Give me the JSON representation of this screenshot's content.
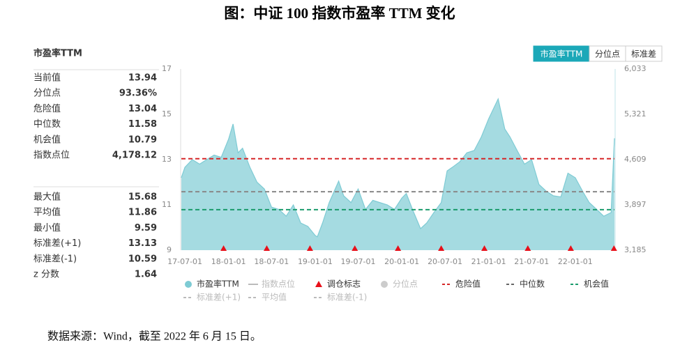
{
  "title": "图：中证 100 指数市盈率 TTM 变化",
  "source": "数据来源：Wind，截至 2022 年 6 月 15 日。",
  "buttons": [
    "市盈率TTM",
    "分位点",
    "标准差"
  ],
  "panel": {
    "title": "市盈率TTM",
    "group1": [
      [
        "当前值",
        "13.94"
      ],
      [
        "分位点",
        "93.36%"
      ],
      [
        "危险值",
        "13.04"
      ],
      [
        "中位数",
        "11.58"
      ],
      [
        "机会值",
        "10.79"
      ],
      [
        "指数点位",
        "4,178.12"
      ]
    ],
    "group2": [
      [
        "最大值",
        "15.68"
      ],
      [
        "平均值",
        "11.86"
      ],
      [
        "最小值",
        "9.59"
      ],
      [
        "标准差(+1)",
        "13.13"
      ],
      [
        "标准差(-1)",
        "10.59"
      ],
      [
        "z 分数",
        "1.64"
      ]
    ]
  },
  "chart_data": {
    "type": "area",
    "x": [
      "17-06-16",
      "17-07-01",
      "17-08-01",
      "17-09-01",
      "17-10-01",
      "17-11-01",
      "17-12-01",
      "18-01-01",
      "18-01-20",
      "18-02-10",
      "18-03-01",
      "18-04-01",
      "18-05-01",
      "18-06-01",
      "18-07-01",
      "18-08-01",
      "18-09-01",
      "18-10-01",
      "18-11-01",
      "18-12-01",
      "19-01-01",
      "19-01-10",
      "19-02-01",
      "19-03-01",
      "19-04-10",
      "19-05-01",
      "19-06-01",
      "19-07-01",
      "19-08-01",
      "19-09-01",
      "19-10-01",
      "19-11-01",
      "19-12-01",
      "20-01-01",
      "20-01-20",
      "20-02-15",
      "20-03-20",
      "20-04-15",
      "20-05-15",
      "20-06-15",
      "20-07-10",
      "20-08-01",
      "20-09-01",
      "20-10-01",
      "20-11-01",
      "20-12-01",
      "21-01-01",
      "21-02-10",
      "21-03-10",
      "21-04-01",
      "21-05-01",
      "21-06-01",
      "21-07-01",
      "21-08-01",
      "21-09-01",
      "21-10-01",
      "21-11-01",
      "21-12-01",
      "22-01-01",
      "22-02-01",
      "22-03-01",
      "22-04-01",
      "22-05-01",
      "22-06-01",
      "22-06-15"
    ],
    "series": [
      {
        "name": "市盈率TTM",
        "color": "#7ecbd4",
        "fill": "#a5dbe1",
        "values": [
          12.2,
          12.66,
          13.0,
          12.8,
          13.0,
          13.2,
          13.1,
          13.9,
          14.57,
          13.3,
          13.5,
          12.66,
          12.0,
          11.7,
          10.9,
          10.8,
          10.5,
          11.0,
          10.2,
          10.05,
          9.65,
          9.59,
          10.2,
          11.1,
          12.05,
          11.4,
          11.1,
          11.7,
          10.8,
          11.2,
          11.1,
          11.0,
          10.8,
          11.3,
          11.5,
          10.8,
          9.95,
          10.2,
          10.66,
          11.1,
          12.5,
          12.66,
          12.9,
          13.3,
          13.4,
          14.0,
          14.8,
          15.68,
          14.35,
          14.0,
          13.4,
          12.8,
          13.0,
          11.9,
          11.6,
          11.4,
          11.35,
          12.4,
          12.2,
          11.6,
          11.1,
          10.8,
          10.5,
          10.66,
          13.94
        ]
      }
    ],
    "ref_lines": [
      {
        "name": "危险值",
        "value": 13.04,
        "color": "#d62728"
      },
      {
        "name": "中位数",
        "value": 11.58,
        "color": "#888888"
      },
      {
        "name": "机会值",
        "value": 10.79,
        "color": "#1a9b6c"
      }
    ],
    "rebalance": {
      "name": "调仓标志",
      "color": "#e8101a",
      "x": [
        "17-12-11",
        "18-06-11",
        "18-12-10",
        "19-06-17",
        "19-12-16",
        "20-06-15",
        "20-12-14",
        "21-06-15",
        "21-12-13",
        "22-06-13"
      ]
    },
    "xlim": [
      "17-06-16",
      "22-06-15"
    ],
    "xticks": [
      "17-07-01",
      "18-01-01",
      "18-07-01",
      "19-01-01",
      "19-07-01",
      "20-01-01",
      "20-07-01",
      "21-01-01",
      "21-07-01",
      "22-01-01"
    ],
    "ylim": [
      9,
      17
    ],
    "yticks": [
      9,
      11,
      13,
      15,
      17
    ],
    "y2lim": [
      3185,
      6033
    ],
    "y2ticks": [
      {
        "value": 3185,
        "label": "3,185"
      },
      {
        "value": 3897,
        "label": "3,897"
      },
      {
        "value": 4609,
        "label": "4,609"
      },
      {
        "value": 5321,
        "label": "5,321"
      },
      {
        "value": 6033,
        "label": "6,033"
      }
    ],
    "legend": [
      {
        "name": "市盈率TTM",
        "symbol": "circle",
        "color": "#7ecbd4",
        "dim": false
      },
      {
        "name": "指数点位",
        "symbol": "line",
        "color": "#bbbbbb",
        "dim": true
      },
      {
        "name": "调仓标志",
        "symbol": "triangle",
        "color": "#e8101a",
        "dim": false
      },
      {
        "name": "分位点",
        "symbol": "circle",
        "color": "#cccccc",
        "dim": true
      },
      {
        "name": "危险值",
        "symbol": "dash",
        "color": "#d62728",
        "dim": false
      },
      {
        "name": "中位数",
        "symbol": "dash",
        "color": "#666666",
        "dim": false
      },
      {
        "name": "机会值",
        "symbol": "dash",
        "color": "#1a9b6c",
        "dim": false
      },
      {
        "name": "标准差(+1)",
        "symbol": "dash",
        "color": "#bbbbbb",
        "dim": true
      },
      {
        "name": "平均值",
        "symbol": "dash",
        "color": "#bbbbbb",
        "dim": true
      },
      {
        "name": "标准差(-1)",
        "symbol": "dash",
        "color": "#bbbbbb",
        "dim": true
      }
    ]
  }
}
